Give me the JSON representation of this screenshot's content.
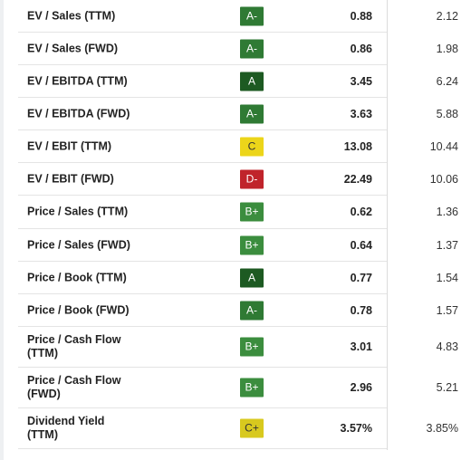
{
  "table": {
    "rows": [
      {
        "label": "EV / Sales (TTM)",
        "grade": "A-",
        "grade_color": "#2f7a34",
        "grade_text_color": "#ffffff",
        "value": "0.88",
        "sector": "2.12"
      },
      {
        "label": "EV / Sales (FWD)",
        "grade": "A-",
        "grade_color": "#2f7a34",
        "grade_text_color": "#ffffff",
        "value": "0.86",
        "sector": "1.98"
      },
      {
        "label": "EV / EBITDA (TTM)",
        "grade": "A",
        "grade_color": "#1d5a22",
        "grade_text_color": "#ffffff",
        "value": "3.45",
        "sector": "6.24"
      },
      {
        "label": "EV / EBITDA (FWD)",
        "grade": "A-",
        "grade_color": "#2f7a34",
        "grade_text_color": "#ffffff",
        "value": "3.63",
        "sector": "5.88"
      },
      {
        "label": "EV / EBIT (TTM)",
        "grade": "C",
        "grade_color": "#ecd51a",
        "grade_text_color": "#333333",
        "value": "13.08",
        "sector": "10.44"
      },
      {
        "label": "EV / EBIT (FWD)",
        "grade": "D-",
        "grade_color": "#c0242b",
        "grade_text_color": "#ffffff",
        "value": "22.49",
        "sector": "10.06"
      },
      {
        "label": "Price / Sales (TTM)",
        "grade": "B+",
        "grade_color": "#3b8d3e",
        "grade_text_color": "#ffffff",
        "value": "0.62",
        "sector": "1.36"
      },
      {
        "label": "Price / Sales (FWD)",
        "grade": "B+",
        "grade_color": "#3b8d3e",
        "grade_text_color": "#ffffff",
        "value": "0.64",
        "sector": "1.37"
      },
      {
        "label": "Price / Book (TTM)",
        "grade": "A",
        "grade_color": "#1d5a22",
        "grade_text_color": "#ffffff",
        "value": "0.77",
        "sector": "1.54"
      },
      {
        "label": "Price / Book (FWD)",
        "grade": "A-",
        "grade_color": "#2f7a34",
        "grade_text_color": "#ffffff",
        "value": "0.78",
        "sector": "1.57"
      },
      {
        "label": "Price / Cash Flow (TTM)",
        "grade": "B+",
        "grade_color": "#3b8d3e",
        "grade_text_color": "#ffffff",
        "value": "3.01",
        "sector": "4.83"
      },
      {
        "label": "Price / Cash Flow (FWD)",
        "grade": "B+",
        "grade_color": "#3b8d3e",
        "grade_text_color": "#ffffff",
        "value": "2.96",
        "sector": "5.21"
      },
      {
        "label": "Dividend Yield (TTM)",
        "grade": "C+",
        "grade_color": "#d8c91e",
        "grade_text_color": "#333333",
        "value": "3.57%",
        "sector": "3.85%"
      }
    ]
  }
}
